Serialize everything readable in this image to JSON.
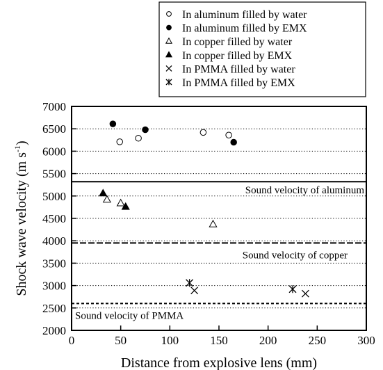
{
  "chart_data": {
    "type": "scatter",
    "xlabel": "Distance from explosive lens (mm)",
    "ylabel": "Shock wave velocity (m s",
    "ylabel_sup": "-1",
    "ylabel_close": ")",
    "xlim": [
      0,
      300
    ],
    "ylim": [
      2000,
      7000
    ],
    "xticks": [
      "0",
      "50",
      "100",
      "150",
      "200",
      "250",
      "300"
    ],
    "yticks": [
      "2000",
      "2500",
      "3000",
      "3500",
      "4000",
      "4500",
      "5000",
      "5500",
      "6000",
      "6500",
      "7000"
    ],
    "grid": "horizontal-dotted",
    "legend_position": "top-right-outside",
    "series": [
      {
        "name": "In aluminum filled by water",
        "marker": "open-circle",
        "x": [
          49,
          68,
          134,
          160
        ],
        "y": [
          6210,
          6290,
          6420,
          6360
        ]
      },
      {
        "name": "In aluminum filled by EMX",
        "marker": "filled-circle",
        "x": [
          42,
          75,
          165
        ],
        "y": [
          6610,
          6480,
          6200
        ]
      },
      {
        "name": "In copper filled by water",
        "marker": "open-triangle",
        "x": [
          36,
          50,
          144
        ],
        "y": [
          4920,
          4840,
          4370
        ]
      },
      {
        "name": "In copper filled by EMX",
        "marker": "filled-triangle",
        "x": [
          32,
          55
        ],
        "y": [
          5060,
          4760
        ]
      },
      {
        "name": "In PMMA filled by water",
        "marker": "cross",
        "x": [
          125,
          238
        ],
        "y": [
          2890,
          2820
        ]
      },
      {
        "name": "In PMMA filled by EMX",
        "marker": "asterisk",
        "x": [
          120,
          225
        ],
        "y": [
          3060,
          2920
        ]
      }
    ],
    "reference_lines": [
      {
        "label": "Sound velocity of aluminum",
        "y": 5320,
        "style": "solid"
      },
      {
        "label": "Sound velocity of copper",
        "y": 3950,
        "style": "dashed"
      },
      {
        "label": "Sound velocity of PMMA",
        "y": 2600,
        "style": "short-dashed"
      }
    ]
  }
}
